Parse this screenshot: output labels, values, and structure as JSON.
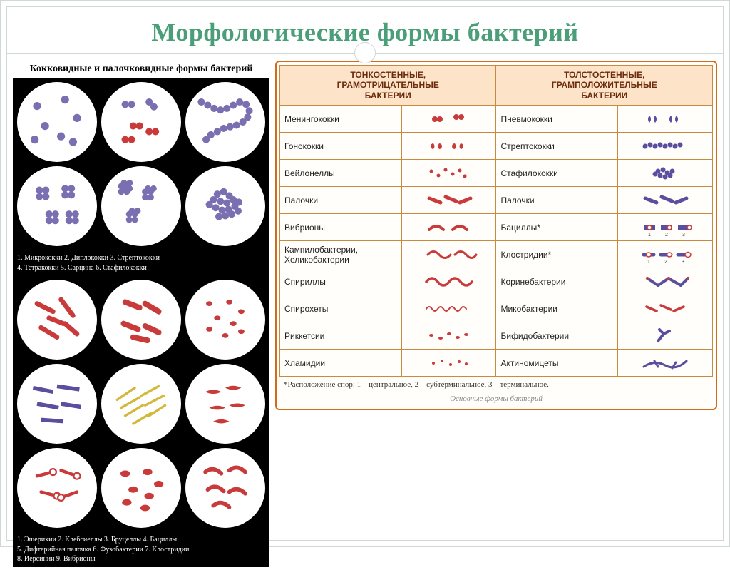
{
  "title": "Морфологические формы бактерий",
  "left_panel": {
    "heading": "Кокковидные и палочковидные формы бактерий",
    "top_grid_legend": "1. Микрококки   2. Диплококки   3. Стрептококки\n4. Тетракокки   5. Сарцина   6. Стафилококки",
    "bottom_grid_legend": "1. Эшерихии   2. Клебсиеллы   3. Бруцеллы   4. Бациллы\n5. Дифтерийная палочка   6. Фузобактерии   7. Клостридии\n8. Иерсинии   9. Вибрионы",
    "top_grid": {
      "count": 6,
      "numbers": [
        "1",
        "2",
        "3",
        "4",
        "5",
        "6"
      ],
      "dot_color": "#7a6fb0",
      "red_color": "#c93a3a",
      "bg": "#ffffff"
    },
    "bottom_grid": {
      "count": 9,
      "numbers": [
        "1",
        "2",
        "3",
        "4",
        "5",
        "6",
        "7",
        "8",
        "9"
      ],
      "red_color": "#c93a3a",
      "purple_color": "#5a4e9e",
      "yellow_color": "#d4b83a",
      "bg": "#ffffff"
    }
  },
  "right_panel": {
    "header_left": "ТОНКОСТЕННЫЕ,\nГРАМОТРИЦАТЕЛЬНЫЕ\nБАКТЕРИИ",
    "header_right": "ТОЛСТОСТЕННЫЕ,\nГРАМПОЛОЖИТЕЛЬНЫЕ\nБАКТЕРИИ",
    "rows": [
      {
        "neg_name": "Менингококки",
        "neg_shape": "diplococcus",
        "pos_name": "Пневмококки",
        "pos_shape": "lancet-pair"
      },
      {
        "neg_name": "Гонококки",
        "neg_shape": "diplococcus-bean",
        "pos_name": "Стрептококки",
        "pos_shape": "chain"
      },
      {
        "neg_name": "Вейлонеллы",
        "neg_shape": "small-cocci",
        "pos_name": "Стафилококки",
        "pos_shape": "cluster"
      },
      {
        "neg_name": "Палочки",
        "neg_shape": "rods-red",
        "pos_name": "Палочки",
        "pos_shape": "rods-purple"
      },
      {
        "neg_name": "Вибрионы",
        "neg_shape": "vibrio",
        "pos_name": "Бациллы*",
        "pos_shape": "bacillus-spore"
      },
      {
        "neg_name": "Кампилобактерии,\nХеликобактерии",
        "neg_shape": "campylo",
        "pos_name": "Клостридии*",
        "pos_shape": "clostridium"
      },
      {
        "neg_name": "Спириллы",
        "neg_shape": "spirillum",
        "pos_name": "Коринебактерии",
        "pos_shape": "coryne"
      },
      {
        "neg_name": "Спирохеты",
        "neg_shape": "spirochete",
        "pos_name": "Микобактерии",
        "pos_shape": "myco"
      },
      {
        "neg_name": "Риккетсии",
        "neg_shape": "rickettsia",
        "pos_name": "Бифидобактерии",
        "pos_shape": "bifido"
      },
      {
        "neg_name": "Хламидии",
        "neg_shape": "chlamydia",
        "pos_name": "Актиномицеты",
        "pos_shape": "actino"
      }
    ],
    "footnote": "*Расположение спор: 1 – центральное,   2 – субтерминальное,   3 – терминальное.",
    "caption": "Основные формы бактерий",
    "colors": {
      "neg": "#c93a3a",
      "pos": "#5a4e9e",
      "spore_num": "#333333"
    }
  },
  "style": {
    "title_color": "#4a9f79",
    "frame_border": "#cfd8d4",
    "right_border": "#d06b1a",
    "right_header_bg": "#fde3c7",
    "cell_border": "#c88a3e"
  }
}
